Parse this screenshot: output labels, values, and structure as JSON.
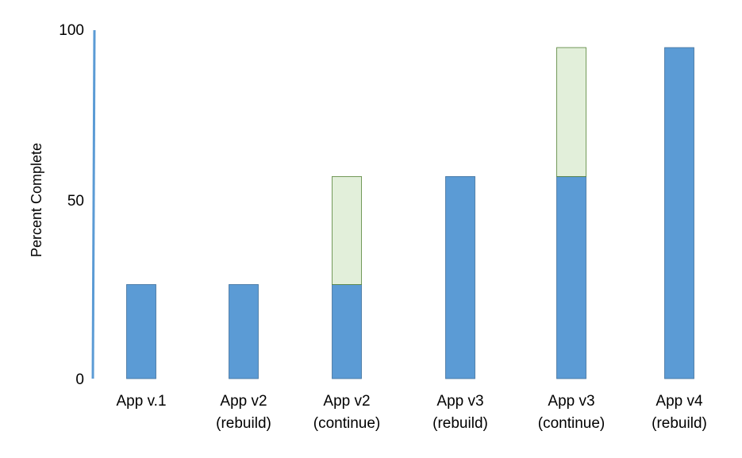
{
  "chart_data": {
    "type": "bar",
    "stacked": true,
    "title": "",
    "xlabel": "",
    "ylabel": "Percent Complete",
    "ylim": [
      0,
      100
    ],
    "yticks": [
      "0",
      "50",
      "100"
    ],
    "grid": false,
    "legend": "none",
    "categories": [
      [
        "App v.1",
        ""
      ],
      [
        "App v2",
        "(rebuild)"
      ],
      [
        "App v2",
        "(continue)"
      ],
      [
        "App v3",
        "(rebuild)"
      ],
      [
        "App v3",
        "(continue)"
      ],
      [
        "App v4",
        "(rebuild)"
      ]
    ],
    "series": [
      {
        "values": [
          27,
          27,
          27,
          58,
          58,
          95
        ],
        "color": "#5B9BD5"
      },
      {
        "values": [
          0,
          0,
          31,
          0,
          37,
          0
        ],
        "color": "#E2EFDA"
      }
    ],
    "axis_color": "#5B9BD5"
  }
}
